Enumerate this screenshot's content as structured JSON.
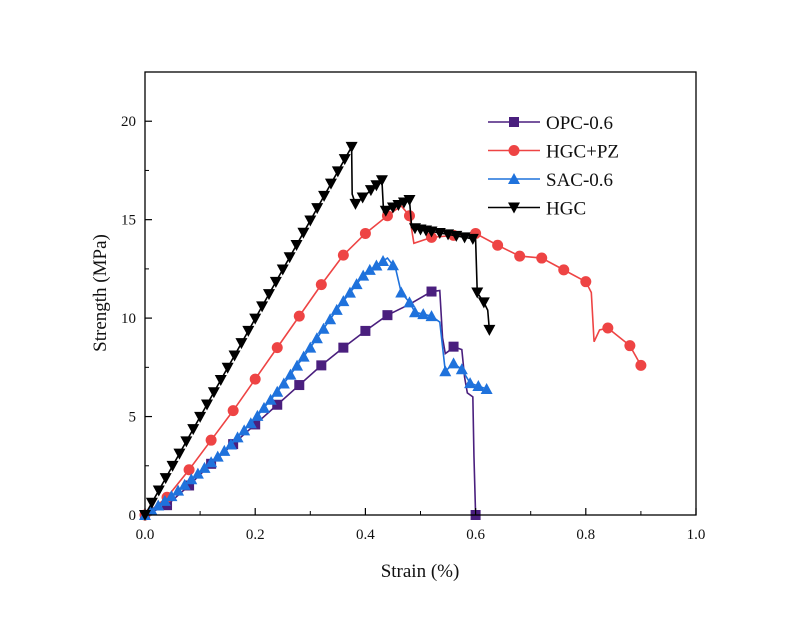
{
  "chart_data": {
    "type": "line",
    "title": "",
    "xlabel": "Strain (%)",
    "ylabel": "Strength (MPa)",
    "xlim": [
      0,
      1.0
    ],
    "ylim": [
      0,
      22.5
    ],
    "xticks": [
      "0.0",
      "0.2",
      "0.4",
      "0.6",
      "0.8",
      "1.0"
    ],
    "xtick_values": [
      0,
      0.2,
      0.4,
      0.6,
      0.8,
      1.0
    ],
    "yticks": [
      "0",
      "5",
      "10",
      "15",
      "20"
    ],
    "ytick_values": [
      0,
      5,
      10,
      15,
      20
    ],
    "grid": false,
    "legend_position": "top-right",
    "series": [
      {
        "name": "OPC-0.6",
        "color": "#4a1f7e",
        "marker": "square",
        "points": [
          [
            0,
            0
          ],
          [
            0.04,
            0.5
          ],
          [
            0.08,
            1.5
          ],
          [
            0.12,
            2.6
          ],
          [
            0.16,
            3.6
          ],
          [
            0.2,
            4.6
          ],
          [
            0.24,
            5.6
          ],
          [
            0.28,
            6.6
          ],
          [
            0.32,
            7.6
          ],
          [
            0.36,
            8.5
          ],
          [
            0.4,
            9.35
          ],
          [
            0.44,
            10.15
          ],
          [
            0.48,
            10.7
          ],
          [
            0.52,
            11.35
          ],
          [
            0.535,
            11.4
          ],
          [
            0.54,
            9
          ],
          [
            0.545,
            8.2
          ],
          [
            0.55,
            8.3
          ],
          [
            0.56,
            8.55
          ],
          [
            0.575,
            8.4
          ],
          [
            0.58,
            7
          ],
          [
            0.585,
            6.2
          ],
          [
            0.595,
            6.0
          ],
          [
            0.597,
            3
          ],
          [
            0.6,
            0
          ]
        ],
        "marker_x": [
          0,
          0.04,
          0.08,
          0.12,
          0.16,
          0.2,
          0.24,
          0.28,
          0.32,
          0.36,
          0.4,
          0.44,
          0.52,
          0.56,
          0.6
        ]
      },
      {
        "name": "HGC+PZ",
        "color": "#ee4444",
        "marker": "circle",
        "points": [
          [
            0,
            0
          ],
          [
            0.04,
            0.9
          ],
          [
            0.08,
            2.3
          ],
          [
            0.12,
            3.8
          ],
          [
            0.16,
            5.3
          ],
          [
            0.2,
            6.9
          ],
          [
            0.24,
            8.5
          ],
          [
            0.28,
            10.1
          ],
          [
            0.32,
            11.7
          ],
          [
            0.36,
            13.2
          ],
          [
            0.4,
            14.3
          ],
          [
            0.44,
            15.2
          ],
          [
            0.465,
            15.7
          ],
          [
            0.48,
            15.2
          ],
          [
            0.488,
            13.8
          ],
          [
            0.52,
            14.1
          ],
          [
            0.56,
            14.2
          ],
          [
            0.6,
            14.3
          ],
          [
            0.64,
            13.7
          ],
          [
            0.68,
            13.15
          ],
          [
            0.72,
            13.05
          ],
          [
            0.76,
            12.45
          ],
          [
            0.8,
            11.85
          ],
          [
            0.81,
            11.3
          ],
          [
            0.815,
            8.8
          ],
          [
            0.825,
            9.4
          ],
          [
            0.84,
            9.5
          ],
          [
            0.88,
            8.6
          ],
          [
            0.9,
            7.6
          ]
        ],
        "marker_x": [
          0,
          0.04,
          0.08,
          0.12,
          0.16,
          0.2,
          0.24,
          0.28,
          0.32,
          0.36,
          0.4,
          0.44,
          0.48,
          0.52,
          0.56,
          0.6,
          0.64,
          0.68,
          0.72,
          0.76,
          0.8,
          0.84,
          0.88,
          0.9
        ]
      },
      {
        "name": "SAC-0.6",
        "color": "#1f72dc",
        "marker": "triangle-up",
        "points": [
          [
            0,
            0
          ],
          [
            0.05,
            1.0
          ],
          [
            0.1,
            2.2
          ],
          [
            0.15,
            3.4
          ],
          [
            0.2,
            4.9
          ],
          [
            0.25,
            6.6
          ],
          [
            0.3,
            8.5
          ],
          [
            0.35,
            10.5
          ],
          [
            0.4,
            12.3
          ],
          [
            0.44,
            13.05
          ],
          [
            0.455,
            12.5
          ],
          [
            0.465,
            11.3
          ],
          [
            0.48,
            10.8
          ],
          [
            0.49,
            10.3
          ],
          [
            0.52,
            10.1
          ],
          [
            0.535,
            9.8
          ],
          [
            0.545,
            7.3
          ],
          [
            0.56,
            7.7
          ],
          [
            0.575,
            7.4
          ],
          [
            0.59,
            6.7
          ],
          [
            0.62,
            6.4
          ]
        ],
        "marker_range": [
          0,
          0.44,
          0.012
        ],
        "marker_x": [
          0.45,
          0.465,
          0.48,
          0.49,
          0.505,
          0.52,
          0.545,
          0.56,
          0.575,
          0.59,
          0.605,
          0.62
        ]
      },
      {
        "name": "HGC",
        "color": "#000000",
        "marker": "triangle-down",
        "points": [
          [
            0,
            0
          ],
          [
            0.375,
            18.7
          ],
          [
            0.376,
            16.3
          ],
          [
            0.382,
            15.8
          ],
          [
            0.43,
            17.0
          ],
          [
            0.433,
            15.4
          ],
          [
            0.48,
            16.0
          ],
          [
            0.484,
            14.6
          ],
          [
            0.5,
            14.5
          ],
          [
            0.6,
            14.0
          ],
          [
            0.603,
            11.3
          ],
          [
            0.615,
            10.8
          ],
          [
            0.622,
            10.4
          ],
          [
            0.625,
            9.4
          ]
        ],
        "marker_range": [
          0,
          0.375,
          0.0125
        ],
        "marker_x": [
          0.382,
          0.395,
          0.41,
          0.42,
          0.43,
          0.437,
          0.45,
          0.46,
          0.47,
          0.48,
          0.49,
          0.5,
          0.51,
          0.52,
          0.535,
          0.55,
          0.565,
          0.58,
          0.595,
          0.603,
          0.615,
          0.625
        ]
      }
    ]
  }
}
